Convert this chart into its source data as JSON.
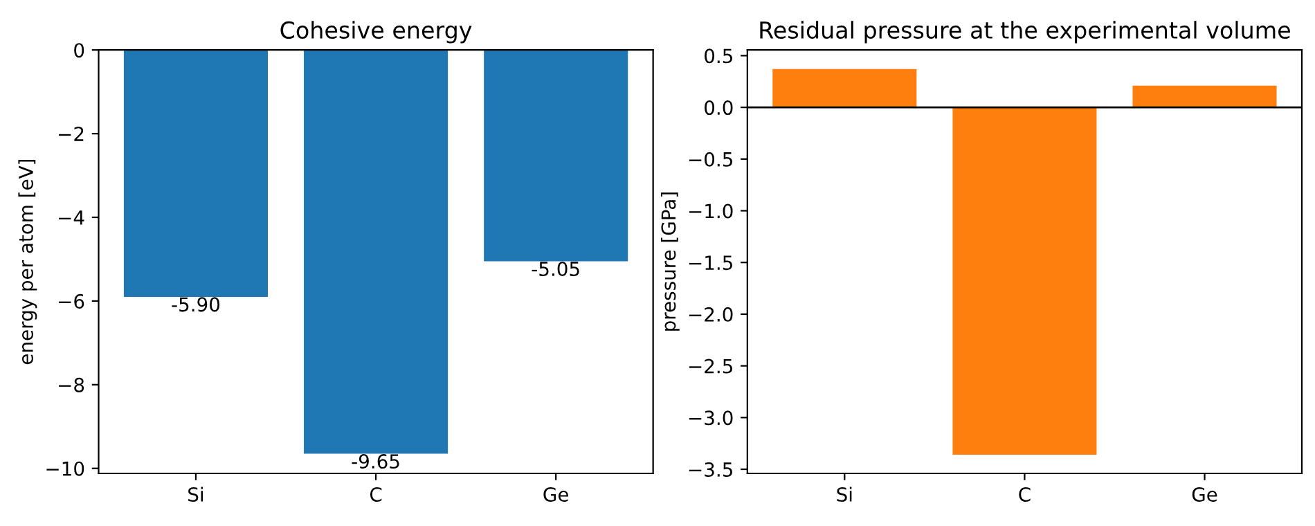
{
  "chart_data": [
    {
      "type": "bar",
      "title": "Cohesive energy",
      "ylabel": "energy per atom [eV]",
      "categories": [
        "Si",
        "C",
        "Ge"
      ],
      "values": [
        -5.9,
        -9.65,
        -5.05
      ],
      "value_labels": [
        "-5.90",
        "-9.65",
        "-5.05"
      ],
      "color": "#1f77b4",
      "ylim": [
        -10.12,
        0
      ],
      "yticks": [
        -10,
        -8,
        -6,
        -4,
        -2,
        0
      ]
    },
    {
      "type": "bar",
      "title": "Residual pressure at the experimental volume",
      "ylabel": "pressure [GPa]",
      "categories": [
        "Si",
        "C",
        "Ge"
      ],
      "values": [
        0.37,
        -3.36,
        0.21
      ],
      "color": "#ff7f0e",
      "ylim": [
        -3.54,
        0.555
      ],
      "yticks": [
        {
          "value": -3.5,
          "label": "−3.5"
        },
        {
          "value": -3,
          "label": "−3.0"
        },
        {
          "value": -2.5,
          "label": "−2.5"
        },
        {
          "value": -2,
          "label": "−2.0"
        },
        {
          "value": -1.5,
          "label": "−1.5"
        },
        {
          "value": -1,
          "label": "−1.0"
        },
        {
          "value": -0.5,
          "label": "−0.5"
        },
        {
          "value": 0,
          "label": "0.0"
        },
        {
          "value": 0.5,
          "label": "0.5"
        }
      ],
      "ref_lines": [
        {
          "axis": "y",
          "value": 0,
          "color": "#000000"
        }
      ]
    }
  ]
}
